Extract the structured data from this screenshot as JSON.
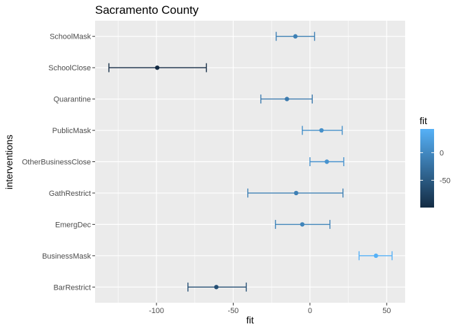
{
  "chart_data": {
    "type": "errorbar",
    "title": "Sacramento County",
    "xlabel": "fit",
    "ylabel": "interventions",
    "xlim": [
      -140,
      62
    ],
    "x_ticks": [
      -100,
      -50,
      0,
      50
    ],
    "x_tick_labels": [
      "-100",
      "-50",
      "0",
      "50"
    ],
    "categories": [
      "SchoolMask",
      "SchoolClose",
      "Quarantine",
      "PublicMask",
      "OtherBusinessClose",
      "GathRestrict",
      "EmergDec",
      "BusinessMask",
      "BarRestrict"
    ],
    "points": [
      {
        "category": "SchoolMask",
        "fit": -9.5,
        "lower": -22,
        "upper": 3
      },
      {
        "category": "SchoolClose",
        "fit": -99.5,
        "lower": -131,
        "upper": -67.5
      },
      {
        "category": "Quarantine",
        "fit": -15,
        "lower": -32,
        "upper": 1.5
      },
      {
        "category": "PublicMask",
        "fit": 7.5,
        "lower": -5,
        "upper": 21
      },
      {
        "category": "OtherBusinessClose",
        "fit": 11,
        "lower": 0,
        "upper": 22
      },
      {
        "category": "GathRestrict",
        "fit": -9,
        "lower": -40.5,
        "upper": 21.5
      },
      {
        "category": "EmergDec",
        "fit": -5,
        "lower": -22.5,
        "upper": 13
      },
      {
        "category": "BusinessMask",
        "fit": 43,
        "lower": 32,
        "upper": 53.5
      },
      {
        "category": "BarRestrict",
        "fit": -61,
        "lower": -79.5,
        "upper": -41.5
      }
    ],
    "grid": true,
    "legend": {
      "title": "fit",
      "position": "right",
      "type": "colorbar",
      "range": [
        -99.5,
        43
      ],
      "ticks": [
        0,
        -50
      ],
      "tick_labels": [
        "0",
        "-50"
      ],
      "low_color": "#132B43",
      "high_color": "#56B1F7"
    },
    "panel_background": "#EBEBEB",
    "grid_color": "#FFFFFF"
  }
}
